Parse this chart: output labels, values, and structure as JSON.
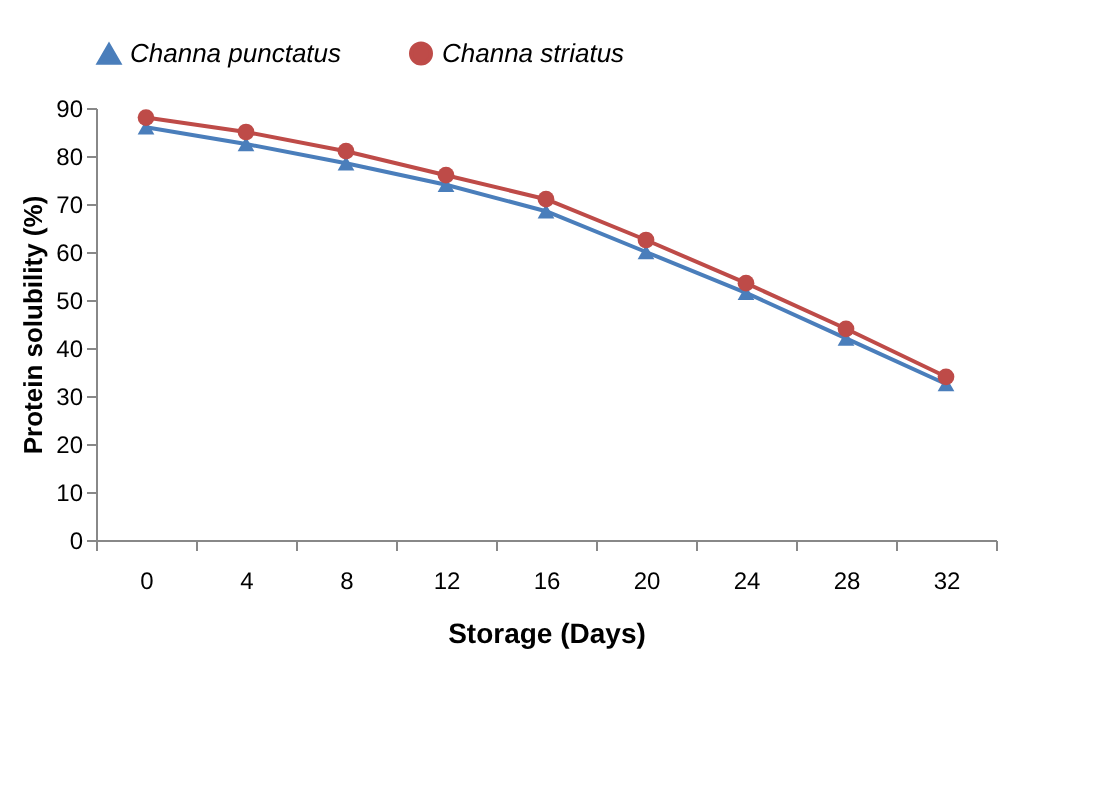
{
  "chart_data": {
    "type": "line",
    "xlabel": "Storage (Days)",
    "ylabel": "Protein solubility  (%)",
    "categories": [
      "0",
      "4",
      "8",
      "12",
      "16",
      "20",
      "24",
      "28",
      "32"
    ],
    "series": [
      {
        "name": "Channa punctatus",
        "color": "#4a7ebb",
        "marker": "triangle",
        "values": [
          86,
          82.5,
          78.5,
          74,
          68.5,
          60,
          51.5,
          42,
          32.5
        ]
      },
      {
        "name": "Channa striatus",
        "color": "#be4b48",
        "marker": "circle",
        "values": [
          88,
          85,
          81,
          76,
          71,
          62.5,
          53.5,
          44,
          34
        ]
      }
    ],
    "ylim": [
      0,
      90
    ],
    "yticks": [
      0,
      10,
      20,
      30,
      40,
      50,
      60,
      70,
      80,
      90
    ],
    "grid": false,
    "legend": "top"
  }
}
